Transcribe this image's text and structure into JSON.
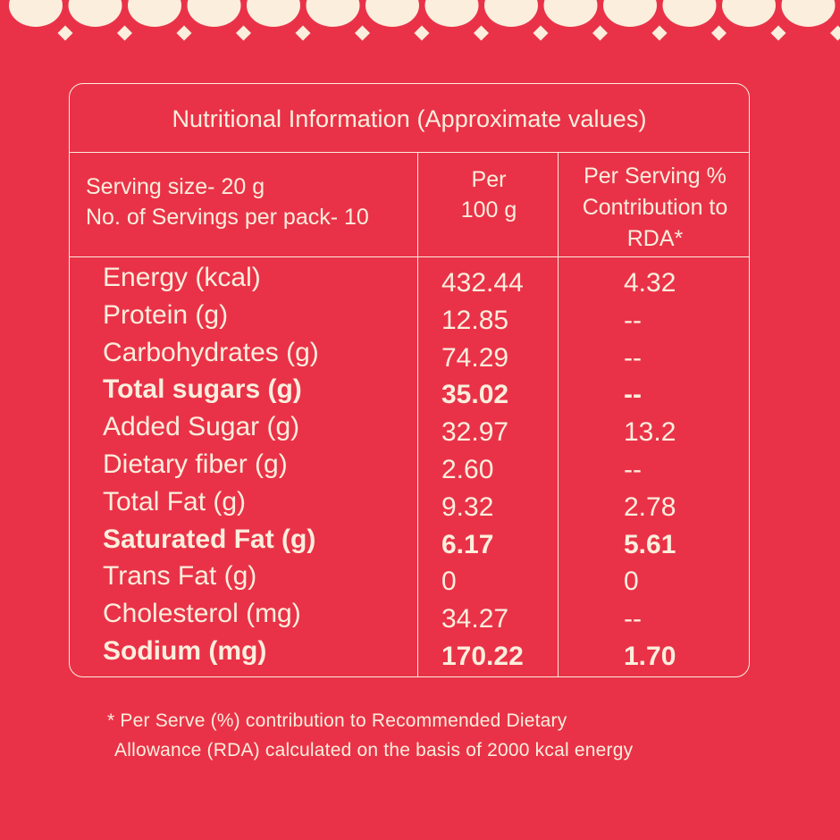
{
  "colors": {
    "background": "#e93248",
    "text": "#fbeedd"
  },
  "title": "Nutritional Information (Approximate values)",
  "header": {
    "serving_size": "Serving size- 20 g",
    "servings_per_pack": "No. of Servings per pack- 10",
    "per100_line1": "Per",
    "per100_line2": "100 g",
    "rda_line1": "Per Serving %",
    "rda_line2": "Contribution to",
    "rda_line3": "RDA*"
  },
  "rows": [
    {
      "name": "Energy (kcal)",
      "per100": "432.44",
      "rda": "4.32",
      "bold": false
    },
    {
      "name": "Protein (g)",
      "per100": "12.85",
      "rda": "--",
      "bold": false
    },
    {
      "name": "Carbohydrates (g)",
      "per100": "74.29",
      "rda": "--",
      "bold": false
    },
    {
      "name": "Total sugars (g)",
      "per100": "35.02",
      "rda": "--",
      "bold": true
    },
    {
      "name": "Added Sugar (g)",
      "per100": "32.97",
      "rda": "13.2",
      "bold": false
    },
    {
      "name": "Dietary fiber (g)",
      "per100": "2.60",
      "rda": "--",
      "bold": false
    },
    {
      "name": "Total Fat (g)",
      "per100": "9.32",
      "rda": "2.78",
      "bold": false
    },
    {
      "name": "Saturated Fat (g)",
      "per100": "6.17",
      "rda": "5.61",
      "bold": true
    },
    {
      "name": "Trans Fat (g)",
      "per100": "0",
      "rda": "0",
      "bold": false
    },
    {
      "name": "Cholesterol (mg)",
      "per100": "34.27",
      "rda": "--",
      "bold": false
    },
    {
      "name": "Sodium (mg)",
      "per100": "170.22",
      "rda": "1.70",
      "bold": true
    }
  ],
  "footnote": {
    "line1": "* Per Serve (%) contribution to Recommended Dietary",
    "line2": "Allowance (RDA) calculated on the basis of 2000 kcal energy"
  }
}
